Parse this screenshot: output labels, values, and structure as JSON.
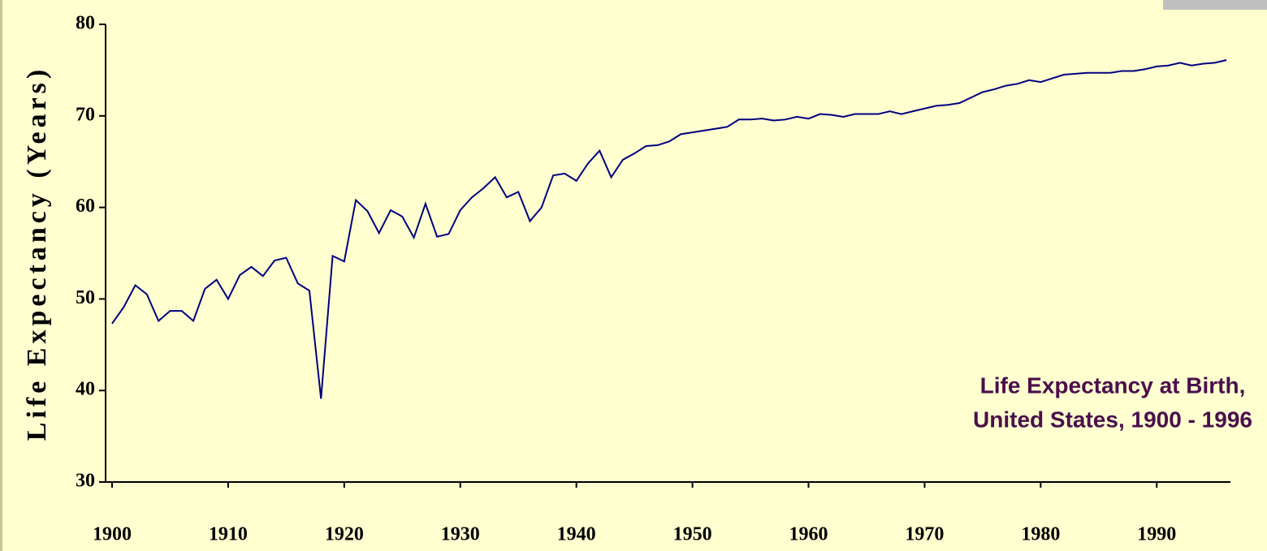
{
  "chart_data": {
    "type": "line",
    "y_label": "Life Expectancy (Years)",
    "annotation": [
      "Life Expectancy at Birth,",
      "United States, 1900 - 1996"
    ],
    "x": [
      1900,
      1901,
      1902,
      1903,
      1904,
      1905,
      1906,
      1907,
      1908,
      1909,
      1910,
      1911,
      1912,
      1913,
      1914,
      1915,
      1916,
      1917,
      1918,
      1919,
      1920,
      1921,
      1922,
      1923,
      1924,
      1925,
      1926,
      1927,
      1928,
      1929,
      1930,
      1931,
      1932,
      1933,
      1934,
      1935,
      1936,
      1937,
      1938,
      1939,
      1940,
      1941,
      1942,
      1943,
      1944,
      1945,
      1946,
      1947,
      1948,
      1949,
      1950,
      1951,
      1952,
      1953,
      1954,
      1955,
      1956,
      1957,
      1958,
      1959,
      1960,
      1961,
      1962,
      1963,
      1964,
      1965,
      1966,
      1967,
      1968,
      1969,
      1970,
      1971,
      1972,
      1973,
      1974,
      1975,
      1976,
      1977,
      1978,
      1979,
      1980,
      1981,
      1982,
      1983,
      1984,
      1985,
      1986,
      1987,
      1988,
      1989,
      1990,
      1991,
      1992,
      1993,
      1994,
      1995,
      1996
    ],
    "series": [
      {
        "name": "Life Expectancy",
        "color": "#000080",
        "values": [
          47.3,
          49.1,
          51.5,
          50.5,
          47.6,
          48.7,
          48.7,
          47.6,
          51.1,
          52.1,
          50.0,
          52.6,
          53.5,
          52.5,
          54.2,
          54.5,
          51.7,
          50.9,
          39.1,
          54.7,
          54.1,
          60.8,
          59.6,
          57.2,
          59.7,
          59.0,
          56.7,
          60.4,
          56.8,
          57.1,
          59.7,
          61.1,
          62.1,
          63.3,
          61.1,
          61.7,
          58.5,
          60.0,
          63.5,
          63.7,
          62.9,
          64.8,
          66.2,
          63.3,
          65.2,
          65.9,
          66.7,
          66.8,
          67.2,
          68.0,
          68.2,
          68.4,
          68.6,
          68.8,
          69.6,
          69.6,
          69.7,
          69.5,
          69.6,
          69.9,
          69.7,
          70.2,
          70.1,
          69.9,
          70.2,
          70.2,
          70.2,
          70.5,
          70.2,
          70.5,
          70.8,
          71.1,
          71.2,
          71.4,
          72.0,
          72.6,
          72.9,
          73.3,
          73.5,
          73.9,
          73.7,
          74.1,
          74.5,
          74.6,
          74.7,
          74.7,
          74.7,
          74.9,
          74.9,
          75.1,
          75.4,
          75.5,
          75.8,
          75.5,
          75.7,
          75.8,
          76.1
        ]
      }
    ],
    "xlim": [
      1900,
      1996
    ],
    "xticks": [
      1900,
      1910,
      1920,
      1930,
      1940,
      1950,
      1960,
      1970,
      1980,
      1990
    ],
    "ylim": [
      30,
      80
    ],
    "yticks": [
      30,
      40,
      50,
      60,
      70,
      80
    ],
    "grid": false
  }
}
